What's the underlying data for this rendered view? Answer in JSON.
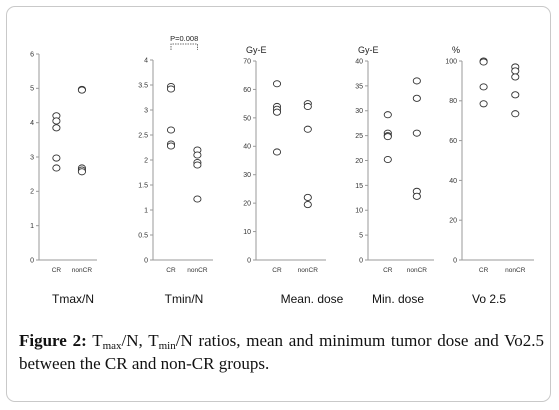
{
  "chart_data": [
    {
      "type": "scatter",
      "title": "Tmax/N",
      "unit": "",
      "categories": [
        "CR",
        "nonCR"
      ],
      "ylim": [
        0,
        6
      ],
      "yticks": [
        0,
        1,
        2,
        3,
        4,
        5,
        6
      ],
      "points": [
        {
          "category": "CR",
          "values": [
            4.2,
            4.05,
            3.85,
            2.97,
            2.68
          ]
        },
        {
          "category": "nonCR",
          "values": [
            4.97,
            4.95,
            2.68,
            2.62,
            2.57
          ]
        }
      ]
    },
    {
      "type": "scatter",
      "title": "Tmin/N",
      "unit": "",
      "categories": [
        "CR",
        "nonCR"
      ],
      "ylim": [
        0,
        4
      ],
      "yticks": [
        0,
        0.5,
        1,
        1.5,
        2,
        2.5,
        3,
        3.5,
        4
      ],
      "significance": "P=0.008",
      "points": [
        {
          "category": "CR",
          "values": [
            3.47,
            3.42,
            2.6,
            2.32,
            2.28
          ]
        },
        {
          "category": "nonCR",
          "values": [
            2.2,
            2.1,
            1.95,
            1.9,
            1.22
          ]
        }
      ]
    },
    {
      "type": "scatter",
      "title": "Mean. dose",
      "unit": "Gy-E",
      "categories": [
        "CR",
        "nonCR"
      ],
      "ylim": [
        0,
        70
      ],
      "yticks": [
        0,
        10,
        20,
        30,
        40,
        50,
        60,
        70
      ],
      "points": [
        {
          "category": "CR",
          "values": [
            62,
            54,
            53,
            52,
            38
          ]
        },
        {
          "category": "nonCR",
          "values": [
            55,
            54,
            46,
            22,
            19.5
          ]
        }
      ]
    },
    {
      "type": "scatter",
      "title": "Min. dose",
      "unit": "Gy-E",
      "categories": [
        "CR",
        "nonCR"
      ],
      "ylim": [
        0,
        40
      ],
      "yticks": [
        0,
        5,
        10,
        15,
        20,
        25,
        30,
        35,
        40
      ],
      "points": [
        {
          "category": "CR",
          "values": [
            29.2,
            25.5,
            25,
            24.8,
            20.2
          ]
        },
        {
          "category": "nonCR",
          "values": [
            36,
            32.5,
            25.5,
            13.8,
            12.8
          ]
        }
      ]
    },
    {
      "type": "scatter",
      "title": "Vo 2.5",
      "unit": "%",
      "categories": [
        "CR",
        "nonCR"
      ],
      "ylim": [
        0,
        100
      ],
      "yticks": [
        0,
        20,
        40,
        60,
        80,
        100
      ],
      "points": [
        {
          "category": "CR",
          "values": [
            100,
            99.5,
            87,
            78.5
          ]
        },
        {
          "category": "nonCR",
          "values": [
            97,
            95,
            92,
            83,
            73.5
          ]
        }
      ]
    }
  ],
  "caption": {
    "label": "Figure 2:",
    "t1_main": "T",
    "t1_sub": "max",
    "t1_tail": "/N,",
    "t2_main": "T",
    "t2_sub": "min",
    "t2_tail": "/N ratios, mean and minimum tumor dose and Vo2.5 between the CR and non-CR groups."
  },
  "colors": {
    "point_stroke": "#333333",
    "axis": "#9a9a9a",
    "frame": "#c9c9c9"
  }
}
